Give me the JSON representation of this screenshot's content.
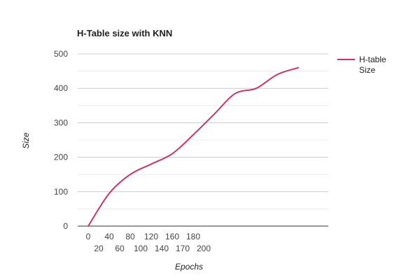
{
  "chart_data": {
    "type": "line",
    "title": "H-Table size with KNN",
    "xlabel": "Epochs",
    "ylabel": "Size",
    "x_categories": [
      "0",
      "20",
      "40",
      "60",
      "80",
      "100",
      "120",
      "140",
      "160",
      "170",
      "180",
      "200"
    ],
    "y_ticks": [
      0,
      100,
      200,
      300,
      400,
      500
    ],
    "ylim": [
      0,
      500
    ],
    "grid": true,
    "legend_position": "right",
    "series": [
      {
        "name": "H-table Size",
        "color": "#cc3366",
        "x_index": [
          0,
          1,
          2,
          3,
          4,
          5,
          6,
          7,
          8,
          9,
          10
        ],
        "values": [
          0,
          95,
          150,
          180,
          210,
          265,
          325,
          385,
          400,
          440,
          460
        ]
      }
    ],
    "legend_lines": [
      "H-table",
      "Size"
    ]
  }
}
